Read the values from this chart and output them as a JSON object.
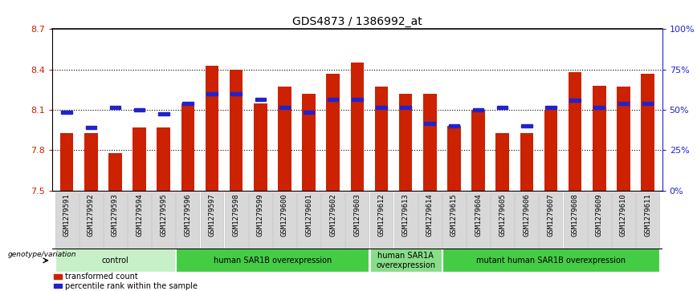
{
  "title": "GDS4873 / 1386992_at",
  "samples": [
    "GSM1279591",
    "GSM1279592",
    "GSM1279593",
    "GSM1279594",
    "GSM1279595",
    "GSM1279596",
    "GSM1279597",
    "GSM1279598",
    "GSM1279599",
    "GSM1279600",
    "GSM1279601",
    "GSM1279602",
    "GSM1279603",
    "GSM1279612",
    "GSM1279613",
    "GSM1279614",
    "GSM1279615",
    "GSM1279604",
    "GSM1279605",
    "GSM1279606",
    "GSM1279607",
    "GSM1279608",
    "GSM1279609",
    "GSM1279610",
    "GSM1279611"
  ],
  "bar_values": [
    7.93,
    7.93,
    7.78,
    7.97,
    7.97,
    8.15,
    8.43,
    8.4,
    8.15,
    8.27,
    8.22,
    8.37,
    8.45,
    8.27,
    8.22,
    8.22,
    7.98,
    8.1,
    7.93,
    7.93,
    8.1,
    8.38,
    8.28,
    8.27,
    8.37
  ],
  "percentile_values": [
    8.08,
    7.97,
    8.12,
    8.1,
    8.07,
    8.15,
    8.22,
    8.22,
    8.18,
    8.12,
    8.08,
    8.18,
    8.18,
    8.12,
    8.12,
    8.0,
    7.98,
    8.1,
    8.12,
    7.98,
    8.12,
    8.17,
    8.12,
    8.15,
    8.15
  ],
  "ylim_left": [
    7.5,
    8.7
  ],
  "ylim_right": [
    0,
    100
  ],
  "yticks_left": [
    7.5,
    7.8,
    8.1,
    8.4,
    8.7
  ],
  "yticks_right": [
    0,
    25,
    50,
    75,
    100
  ],
  "ytick_labels_right": [
    "0%",
    "25%",
    "50%",
    "75%",
    "100%"
  ],
  "bar_color": "#cc2200",
  "marker_color": "#2222cc",
  "bg_color": "#ffffff",
  "groups": [
    {
      "label": "control",
      "start": 0,
      "end": 4,
      "color": "#c8f0c8"
    },
    {
      "label": "human SAR1B overexpression",
      "start": 5,
      "end": 12,
      "color": "#44cc44"
    },
    {
      "label": "human SAR1A\noverexpression",
      "start": 13,
      "end": 15,
      "color": "#88dd88"
    },
    {
      "label": "mutant human SAR1B overexpression",
      "start": 16,
      "end": 24,
      "color": "#44cc44"
    }
  ],
  "genotype_label": "genotype/variation",
  "legend_items": [
    {
      "label": "transformed count",
      "color": "#cc2200"
    },
    {
      "label": "percentile rank within the sample",
      "color": "#2222cc"
    }
  ],
  "tick_label_fontsize": 6.5,
  "title_fontsize": 10
}
